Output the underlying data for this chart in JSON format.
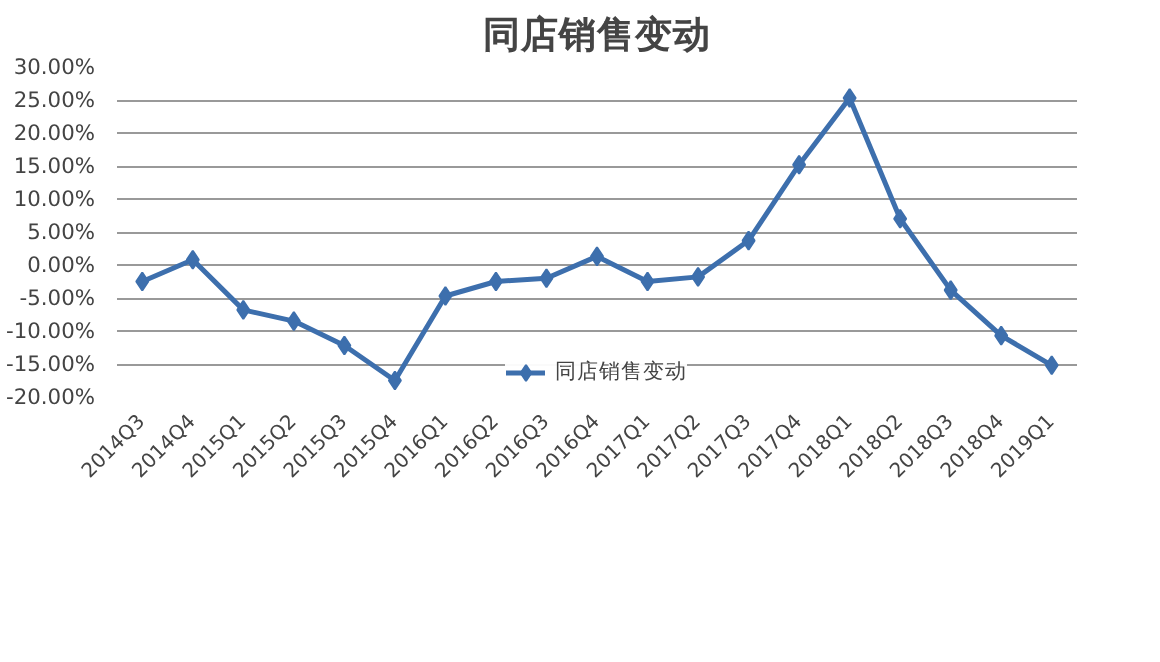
{
  "chart_data": {
    "type": "line",
    "title": "同店销售变动",
    "categories": [
      "2014Q3",
      "2014Q4",
      "2015Q1",
      "2015Q2",
      "2015Q3",
      "2015Q4",
      "2016Q1",
      "2016Q2",
      "2016Q3",
      "2016Q4",
      "2017Q1",
      "2017Q2",
      "2017Q3",
      "2017Q4",
      "2018Q1",
      "2018Q2",
      "2018Q3",
      "2018Q4",
      "2019Q1"
    ],
    "series": [
      {
        "name": "同店销售变动",
        "color": "#3d6fad",
        "values": [
          -2.5,
          0.8,
          -6.8,
          -8.5,
          -12.2,
          -17.5,
          -4.7,
          -2.5,
          -2.0,
          1.3,
          -2.5,
          -1.8,
          3.7,
          15.2,
          25.3,
          7.0,
          -3.8,
          -10.7,
          -15.2
        ]
      }
    ],
    "ylim": [
      -20,
      30
    ],
    "yticks": [
      {
        "value": -20,
        "label": "-20.00%"
      },
      {
        "value": -15,
        "label": "-15.00%"
      },
      {
        "value": -10,
        "label": "-10.00%"
      },
      {
        "value": -5,
        "label": "-5.00%"
      },
      {
        "value": 0,
        "label": "0.00%"
      },
      {
        "value": 5,
        "label": "5.00%"
      },
      {
        "value": 10,
        "label": "10.00%"
      },
      {
        "value": 15,
        "label": "15.00%"
      },
      {
        "value": 20,
        "label": "20.00%"
      },
      {
        "value": 25,
        "label": "25.00%"
      },
      {
        "value": 30,
        "label": "30.00%"
      }
    ],
    "grid": "y",
    "legend": "bottom",
    "marker": "diamond",
    "line_style": "solid"
  }
}
